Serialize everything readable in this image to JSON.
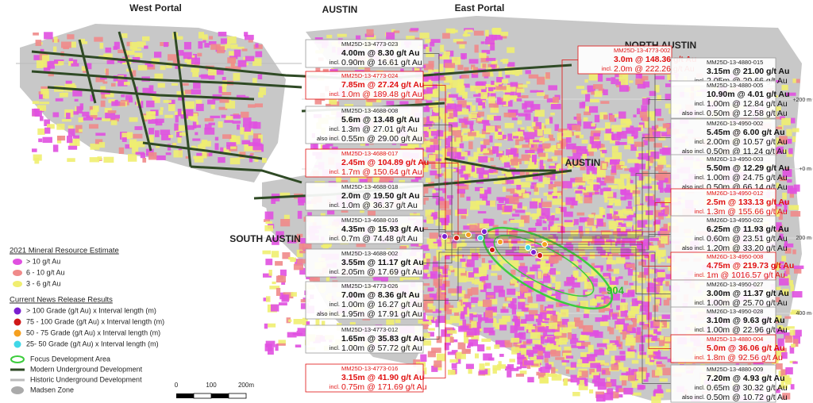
{
  "zones": {
    "west_portal": "West Portal",
    "austin_top": "AUSTIN",
    "east_portal": "East Portal",
    "north_austin": "NORTH AUSTIN",
    "austin_mid": "AUSTIN",
    "south_austin": "SOUTH AUSTIN",
    "focus_label": "904"
  },
  "elevations": [
    "+200 m",
    "+0 m",
    "200 m",
    "400 m"
  ],
  "left_callouts": [
    {
      "id": "MM25D-13-4773-023",
      "highlight": false,
      "lines": [
        {
          "text": "4.00m @ 8.30 g/t Au"
        },
        {
          "prefix": "incl.",
          "text": "0.90m @ 16.61 g/t Au"
        }
      ]
    },
    {
      "id": "MM25D-13-4773-024",
      "highlight": true,
      "lines": [
        {
          "text": "7.85m @ 27.24 g/t Au"
        },
        {
          "prefix": "incl.",
          "text": "1.0m @ 189.48 g/t Au"
        }
      ]
    },
    {
      "id": "MM25D-13-4688-008",
      "highlight": false,
      "lines": [
        {
          "text": "5.6m @ 13.48 g/t Au"
        },
        {
          "prefix": "incl.",
          "text": "1.3m @ 27.01 g/t Au"
        },
        {
          "prefix": "also incl.",
          "text": "0.55m @ 29.00 g/t Au"
        }
      ]
    },
    {
      "id": "MM25D-13-4688-017",
      "highlight": true,
      "lines": [
        {
          "text": "2.45m @ 104.89 g/t Au"
        },
        {
          "prefix": "incl.",
          "text": "1.7m @ 150.64 g/t Au"
        }
      ]
    },
    {
      "id": "MM25D-13-4688-018",
      "highlight": false,
      "lines": [
        {
          "text": "2.0m @ 19.50 g/t Au"
        },
        {
          "prefix": "incl.",
          "text": "1.0m @ 36.37 g/t Au"
        }
      ]
    },
    {
      "id": "MM25D-13-4688-016",
      "highlight": false,
      "lines": [
        {
          "text": "4.35m @ 15.93 g/t Au"
        },
        {
          "prefix": "incl.",
          "text": "0.7m @ 74.48 g/t Au"
        }
      ]
    },
    {
      "id": "MM25D-13-4688-002",
      "highlight": false,
      "lines": [
        {
          "text": "3.55m @ 11.17 g/t Au"
        },
        {
          "prefix": "incl.",
          "text": "2.05m @ 17.69 g/t Au"
        }
      ]
    },
    {
      "id": "MM25D-13-4773-026",
      "highlight": false,
      "lines": [
        {
          "text": "7.00m @ 8.36 g/t Au"
        },
        {
          "prefix": "incl.",
          "text": "1.00m @ 16.27 g/t Au"
        },
        {
          "prefix": "also incl.",
          "text": "1.95m @ 17.91 g/t Au"
        }
      ]
    },
    {
      "id": "MM25D-13-4773-012",
      "highlight": false,
      "lines": [
        {
          "text": "1.65m @ 35.83 g/t Au"
        },
        {
          "prefix": "incl.",
          "text": "1.00m @ 57.72 g/t Au"
        }
      ]
    },
    {
      "id": "MM25D-13-4773-016",
      "highlight": true,
      "lines": [
        {
          "text": "3.15m @ 41.90 g/t Au"
        },
        {
          "prefix": "incl.",
          "text": "0.75m @ 171.69 g/t Au"
        }
      ]
    }
  ],
  "center_callouts": [
    {
      "id": "MM25D-13-4773-002",
      "highlight": true,
      "lines": [
        {
          "text": "3.0m @ 148.36 g/t Au"
        },
        {
          "prefix": "incl.",
          "text": "2.0m @ 222.26 g/t Au"
        }
      ]
    }
  ],
  "right_callouts": [
    {
      "id": "MM25D-13-4880-015",
      "highlight": false,
      "lines": [
        {
          "text": "3.15m @ 21.00 g/t Au"
        },
        {
          "prefix": "incl.",
          "text": "2.05m @ 29.66 g/t Au"
        }
      ]
    },
    {
      "id": "MM25D-13-4880-005",
      "highlight": false,
      "lines": [
        {
          "text": "10.90m @ 4.01 g/t Au"
        },
        {
          "prefix": "incl.",
          "text": "1.00m @ 12.84 g/t Au"
        },
        {
          "prefix": "also incl.",
          "text": "0.50m @ 12.58 g/t Au"
        }
      ]
    },
    {
      "id": "MM26D-13-4950-002",
      "highlight": false,
      "lines": [
        {
          "text": "5.45m @ 6.00 g/t Au"
        },
        {
          "prefix": "incl.",
          "text": "2.00m @ 10.57 g/t Au"
        },
        {
          "prefix": "also incl.",
          "text": "0.50m @ 11.24 g/t Au"
        }
      ]
    },
    {
      "id": "MM26D-13-4950-003",
      "highlight": false,
      "lines": [
        {
          "text": "5.50m @ 12.29 g/t Au"
        },
        {
          "prefix": "incl.",
          "text": "1.00m @ 24.75 g/t Au"
        },
        {
          "prefix": "also incl.",
          "text": "0.50m @ 66.14 g/t Au"
        }
      ]
    },
    {
      "id": "MM26D-13-4950-012",
      "highlight": true,
      "lines": [
        {
          "text": "2.5m @ 133.13 g/t Au"
        },
        {
          "prefix": "incl.",
          "text": "1.3m @ 155.66 g/t Au"
        }
      ]
    },
    {
      "id": "MM26D-13-4950-022",
      "highlight": false,
      "lines": [
        {
          "text": "6.25m @ 11.93 g/t Au"
        },
        {
          "prefix": "incl.",
          "text": "0.60m @ 23.51 g/t Au"
        },
        {
          "prefix": "also incl.",
          "text": "1.20m @ 33.20 g/t Au"
        }
      ]
    },
    {
      "id": "MM26D-13-4950-008",
      "highlight": true,
      "lines": [
        {
          "text": "4.75m @ 219.73 g/t Au"
        },
        {
          "prefix": "incl.",
          "text": "1m @ 1016.57 g/t Au"
        }
      ]
    },
    {
      "id": "MM26D-13-4950-027",
      "highlight": false,
      "lines": [
        {
          "text": "3.00m @ 11.37 g/t Au"
        },
        {
          "prefix": "incl.",
          "text": "1.00m @ 25.70 g/t Au"
        }
      ]
    },
    {
      "id": "MM26D-13-4950-028",
      "highlight": false,
      "lines": [
        {
          "text": "3.10m @ 9.63 g/t Au"
        },
        {
          "prefix": "incl.",
          "text": "1.00m @ 22.96 g/t Au"
        }
      ]
    },
    {
      "id": "MM25D-13-4880-004",
      "highlight": true,
      "lines": [
        {
          "text": "5.0m @ 36.06 g/t Au"
        },
        {
          "prefix": "incl.",
          "text": "1.8m @ 92.56 g/t Au"
        }
      ]
    },
    {
      "id": "MM25D-13-4880-009",
      "highlight": false,
      "lines": [
        {
          "text": "7.20m @ 4.93 g/t Au"
        },
        {
          "prefix": "incl.",
          "text": "0.65m @ 30.32 g/t Au"
        },
        {
          "prefix": "also incl.",
          "text": "0.50m @ 10.72 g/t Au"
        }
      ]
    }
  ],
  "legend": {
    "resource_title": "2021 Mineral Resource Estimate",
    "resource_items": [
      {
        "label": "> 10 g/t Au",
        "color": "#e050e0"
      },
      {
        "label": "6 - 10 g/t Au",
        "color": "#f08a8a"
      },
      {
        "label": "3 - 6 g/t Au",
        "color": "#f0ee70"
      }
    ],
    "results_title": "Current News Release Results",
    "results_items": [
      {
        "label": "> 100 Grade (g/t Au) x Interval length (m)",
        "color": "#7a1fd0"
      },
      {
        "label": "75 - 100 Grade (g/t Au) x Interval length (m)",
        "color": "#d01818"
      },
      {
        "label": "50 - 75 Grade (g/t Au) x Interval length (m)",
        "color": "#f5a020"
      },
      {
        "label": "25- 50 Grade (g/t Au) x Interval length (m)",
        "color": "#40d8e8"
      }
    ],
    "other_items": [
      "Focus Development Area",
      "Modern Underground Development",
      "Historic Underground Development",
      "Madsen Zone"
    ]
  },
  "scale_bar": [
    "0",
    "100",
    "200m"
  ]
}
